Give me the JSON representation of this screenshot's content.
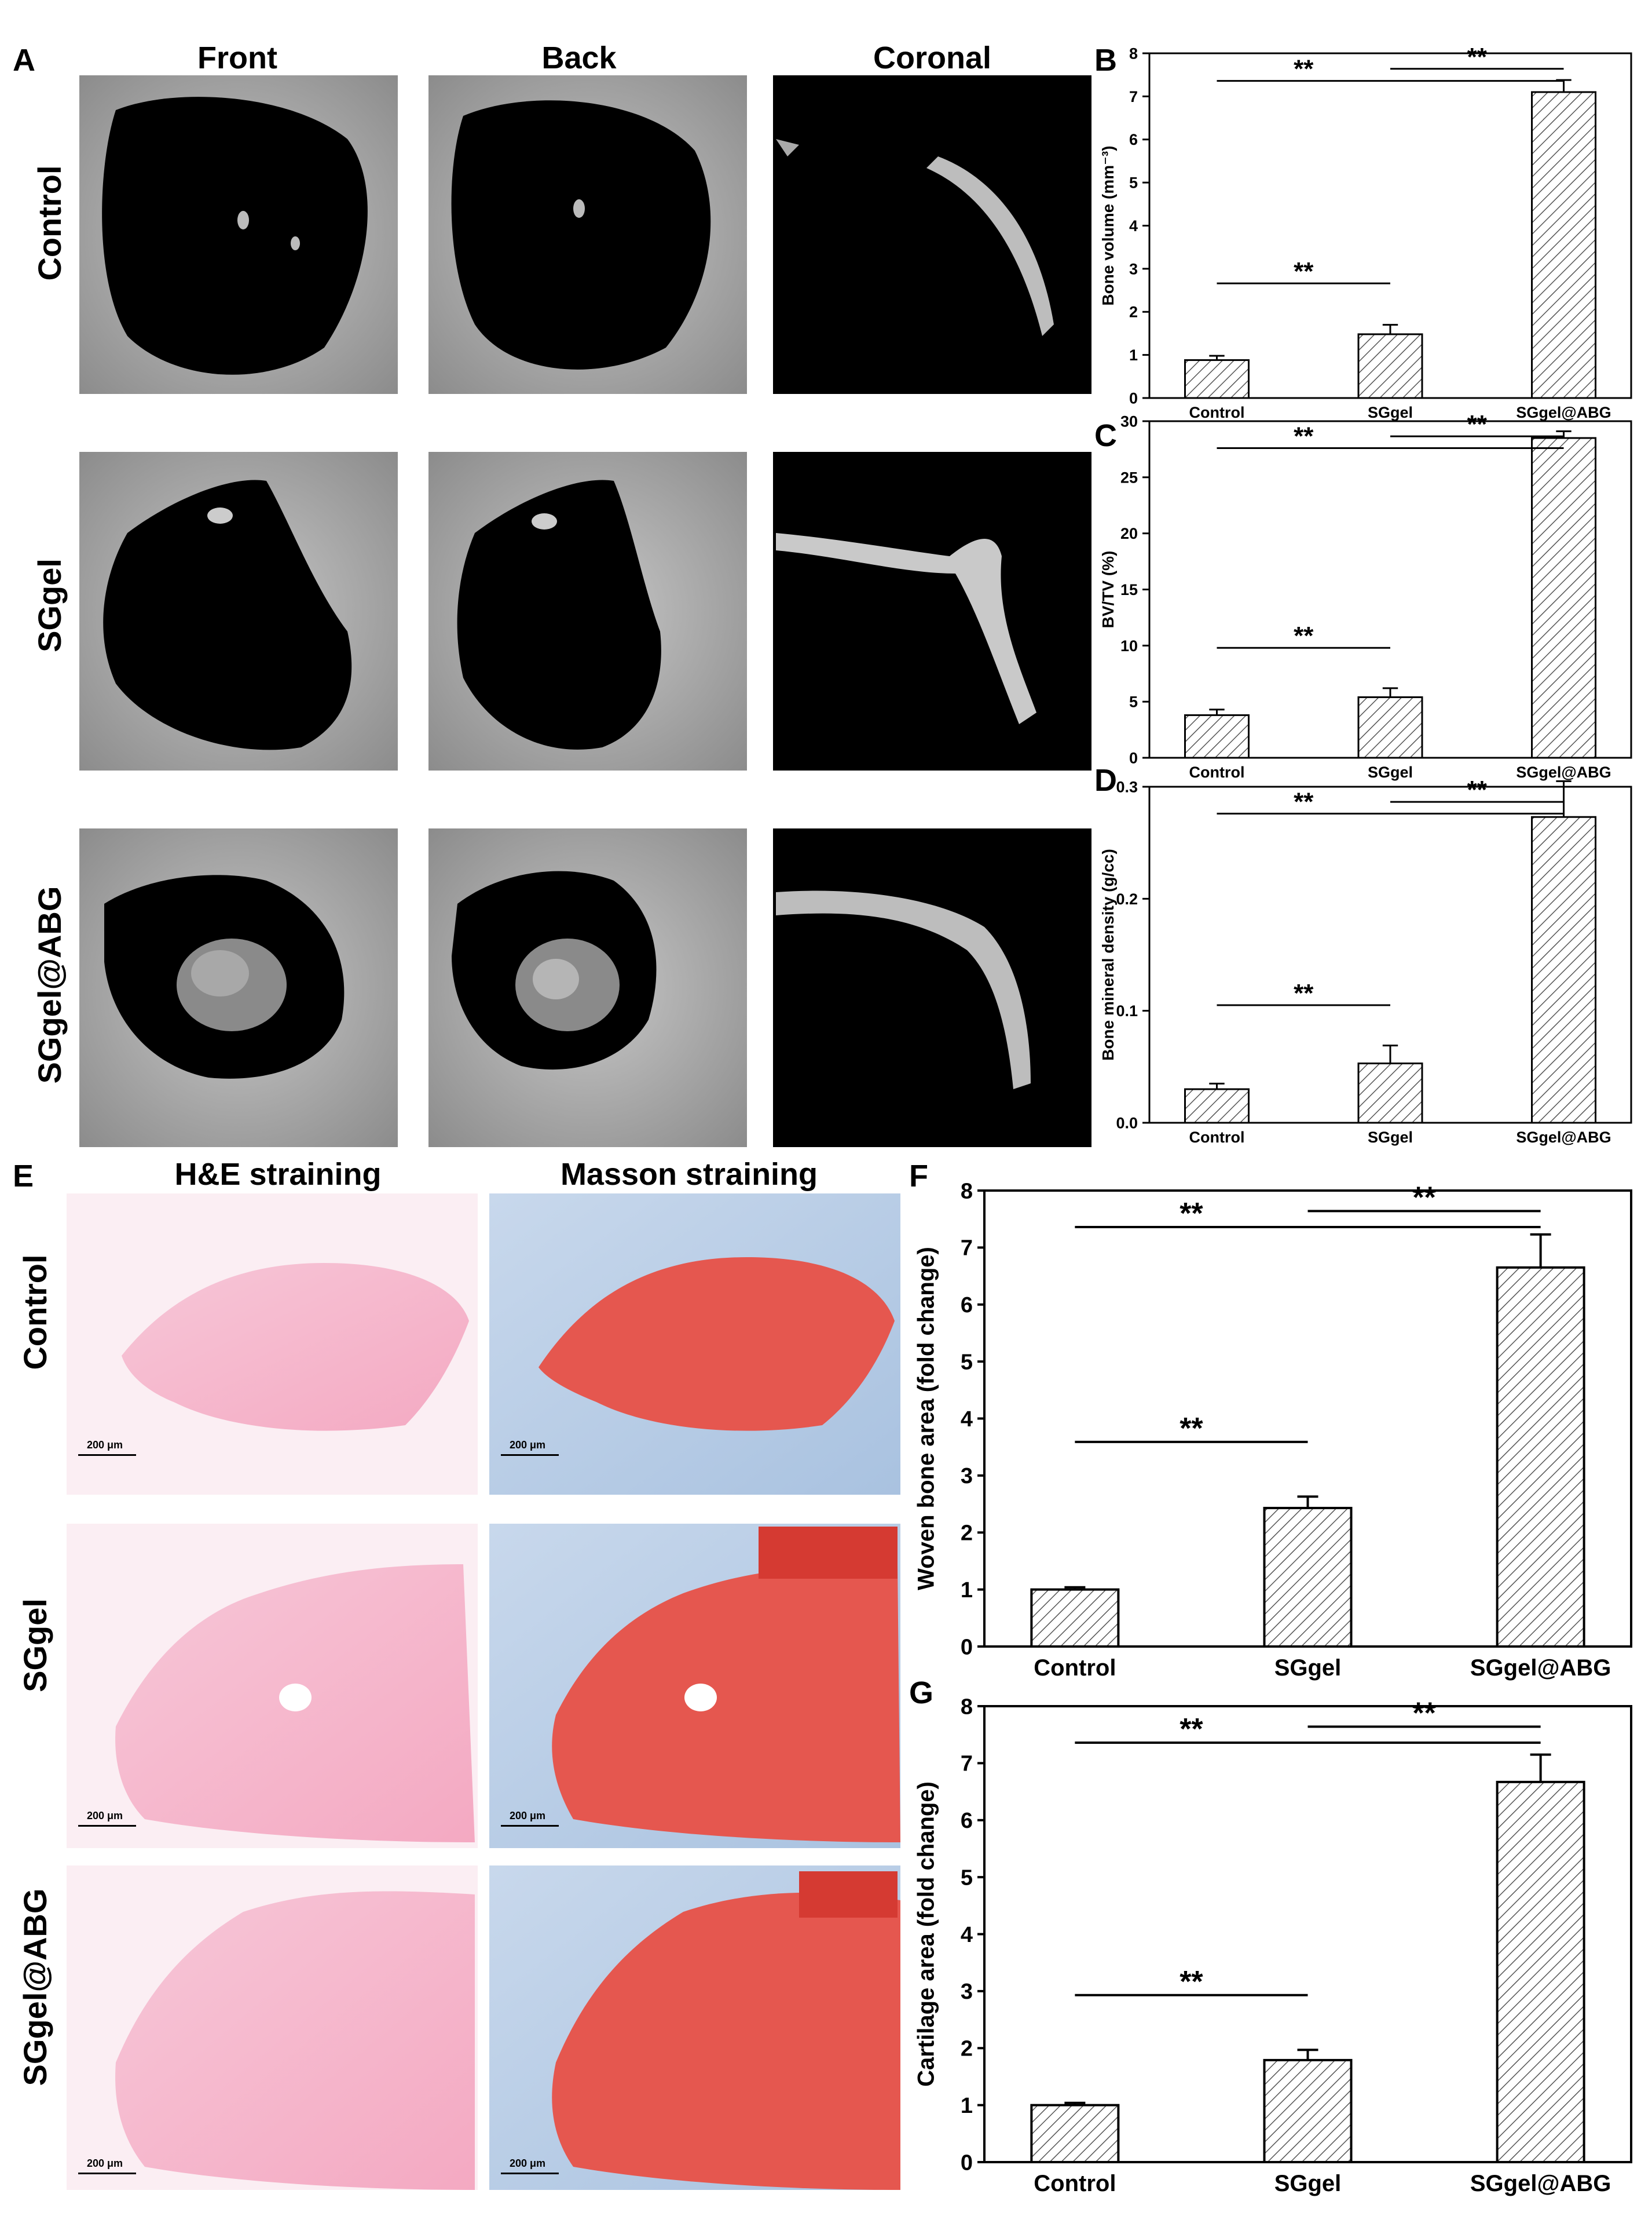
{
  "figure": {
    "panel_labels": [
      "A",
      "B",
      "C",
      "D",
      "E",
      "F",
      "G"
    ],
    "panelA": {
      "column_headers": [
        "Front",
        "Back",
        "Coronal"
      ],
      "row_labels": [
        "Control",
        "SGgel",
        "SGgel@ABG"
      ]
    },
    "panelE": {
      "column_headers": [
        "H&E straining",
        "Masson straining"
      ],
      "row_labels": [
        "Control",
        "SGgel",
        "SGgel@ABG"
      ],
      "scale_bar": "200 μm"
    }
  },
  "chart_data": [
    {
      "panel": "B",
      "type": "bar",
      "categories": [
        "Control",
        "SGgel",
        "SGgel@ABG"
      ],
      "values": [
        0.88,
        1.48,
        7.1
      ],
      "errors": [
        0.1,
        0.22,
        0.28
      ],
      "ylabel": "Bone volume (mm⁻³)",
      "ylim": [
        0,
        8
      ],
      "yticks": [
        0,
        1,
        2,
        3,
        4,
        5,
        6,
        7,
        8
      ],
      "significance": [
        "**",
        "**",
        "**"
      ]
    },
    {
      "panel": "C",
      "type": "bar",
      "categories": [
        "Control",
        "SGgel",
        "SGgel@ABG"
      ],
      "values": [
        3.8,
        5.4,
        28.5
      ],
      "errors": [
        0.5,
        0.8,
        0.6
      ],
      "ylabel": "BV/TV (%)",
      "ylim": [
        0,
        30
      ],
      "yticks": [
        0,
        5,
        10,
        15,
        20,
        25,
        30
      ],
      "significance": [
        "**",
        "**",
        "**"
      ]
    },
    {
      "panel": "D",
      "type": "bar",
      "categories": [
        "Control",
        "SGgel",
        "SGgel@ABG"
      ],
      "values": [
        0.03,
        0.053,
        0.273
      ],
      "errors": [
        0.005,
        0.016,
        0.032
      ],
      "ylabel": "Bone mineral density (g/cc)",
      "ylim": [
        0,
        0.3
      ],
      "yticks": [
        0.0,
        0.1,
        0.2,
        0.3
      ],
      "significance": [
        "**",
        "**",
        "**"
      ]
    },
    {
      "panel": "F",
      "type": "bar",
      "categories": [
        "Control",
        "SGgel",
        "SGgel@ABG"
      ],
      "values": [
        1.0,
        2.43,
        6.65
      ],
      "errors": [
        0.04,
        0.2,
        0.58
      ],
      "ylabel": "Woven bone area (fold change)",
      "ylim": [
        0,
        8
      ],
      "yticks": [
        0,
        1,
        2,
        3,
        4,
        5,
        6,
        7,
        8
      ],
      "significance": [
        "**",
        "**",
        "**"
      ]
    },
    {
      "panel": "G",
      "type": "bar",
      "categories": [
        "Control",
        "SGgel",
        "SGgel@ABG"
      ],
      "values": [
        1.0,
        1.79,
        6.67
      ],
      "errors": [
        0.04,
        0.18,
        0.48
      ],
      "ylabel": "Cartilage area (fold change)",
      "ylim": [
        0,
        8
      ],
      "yticks": [
        0,
        1,
        2,
        3,
        4,
        5,
        6,
        7,
        8
      ],
      "significance": [
        "**",
        "**",
        "**"
      ]
    }
  ]
}
